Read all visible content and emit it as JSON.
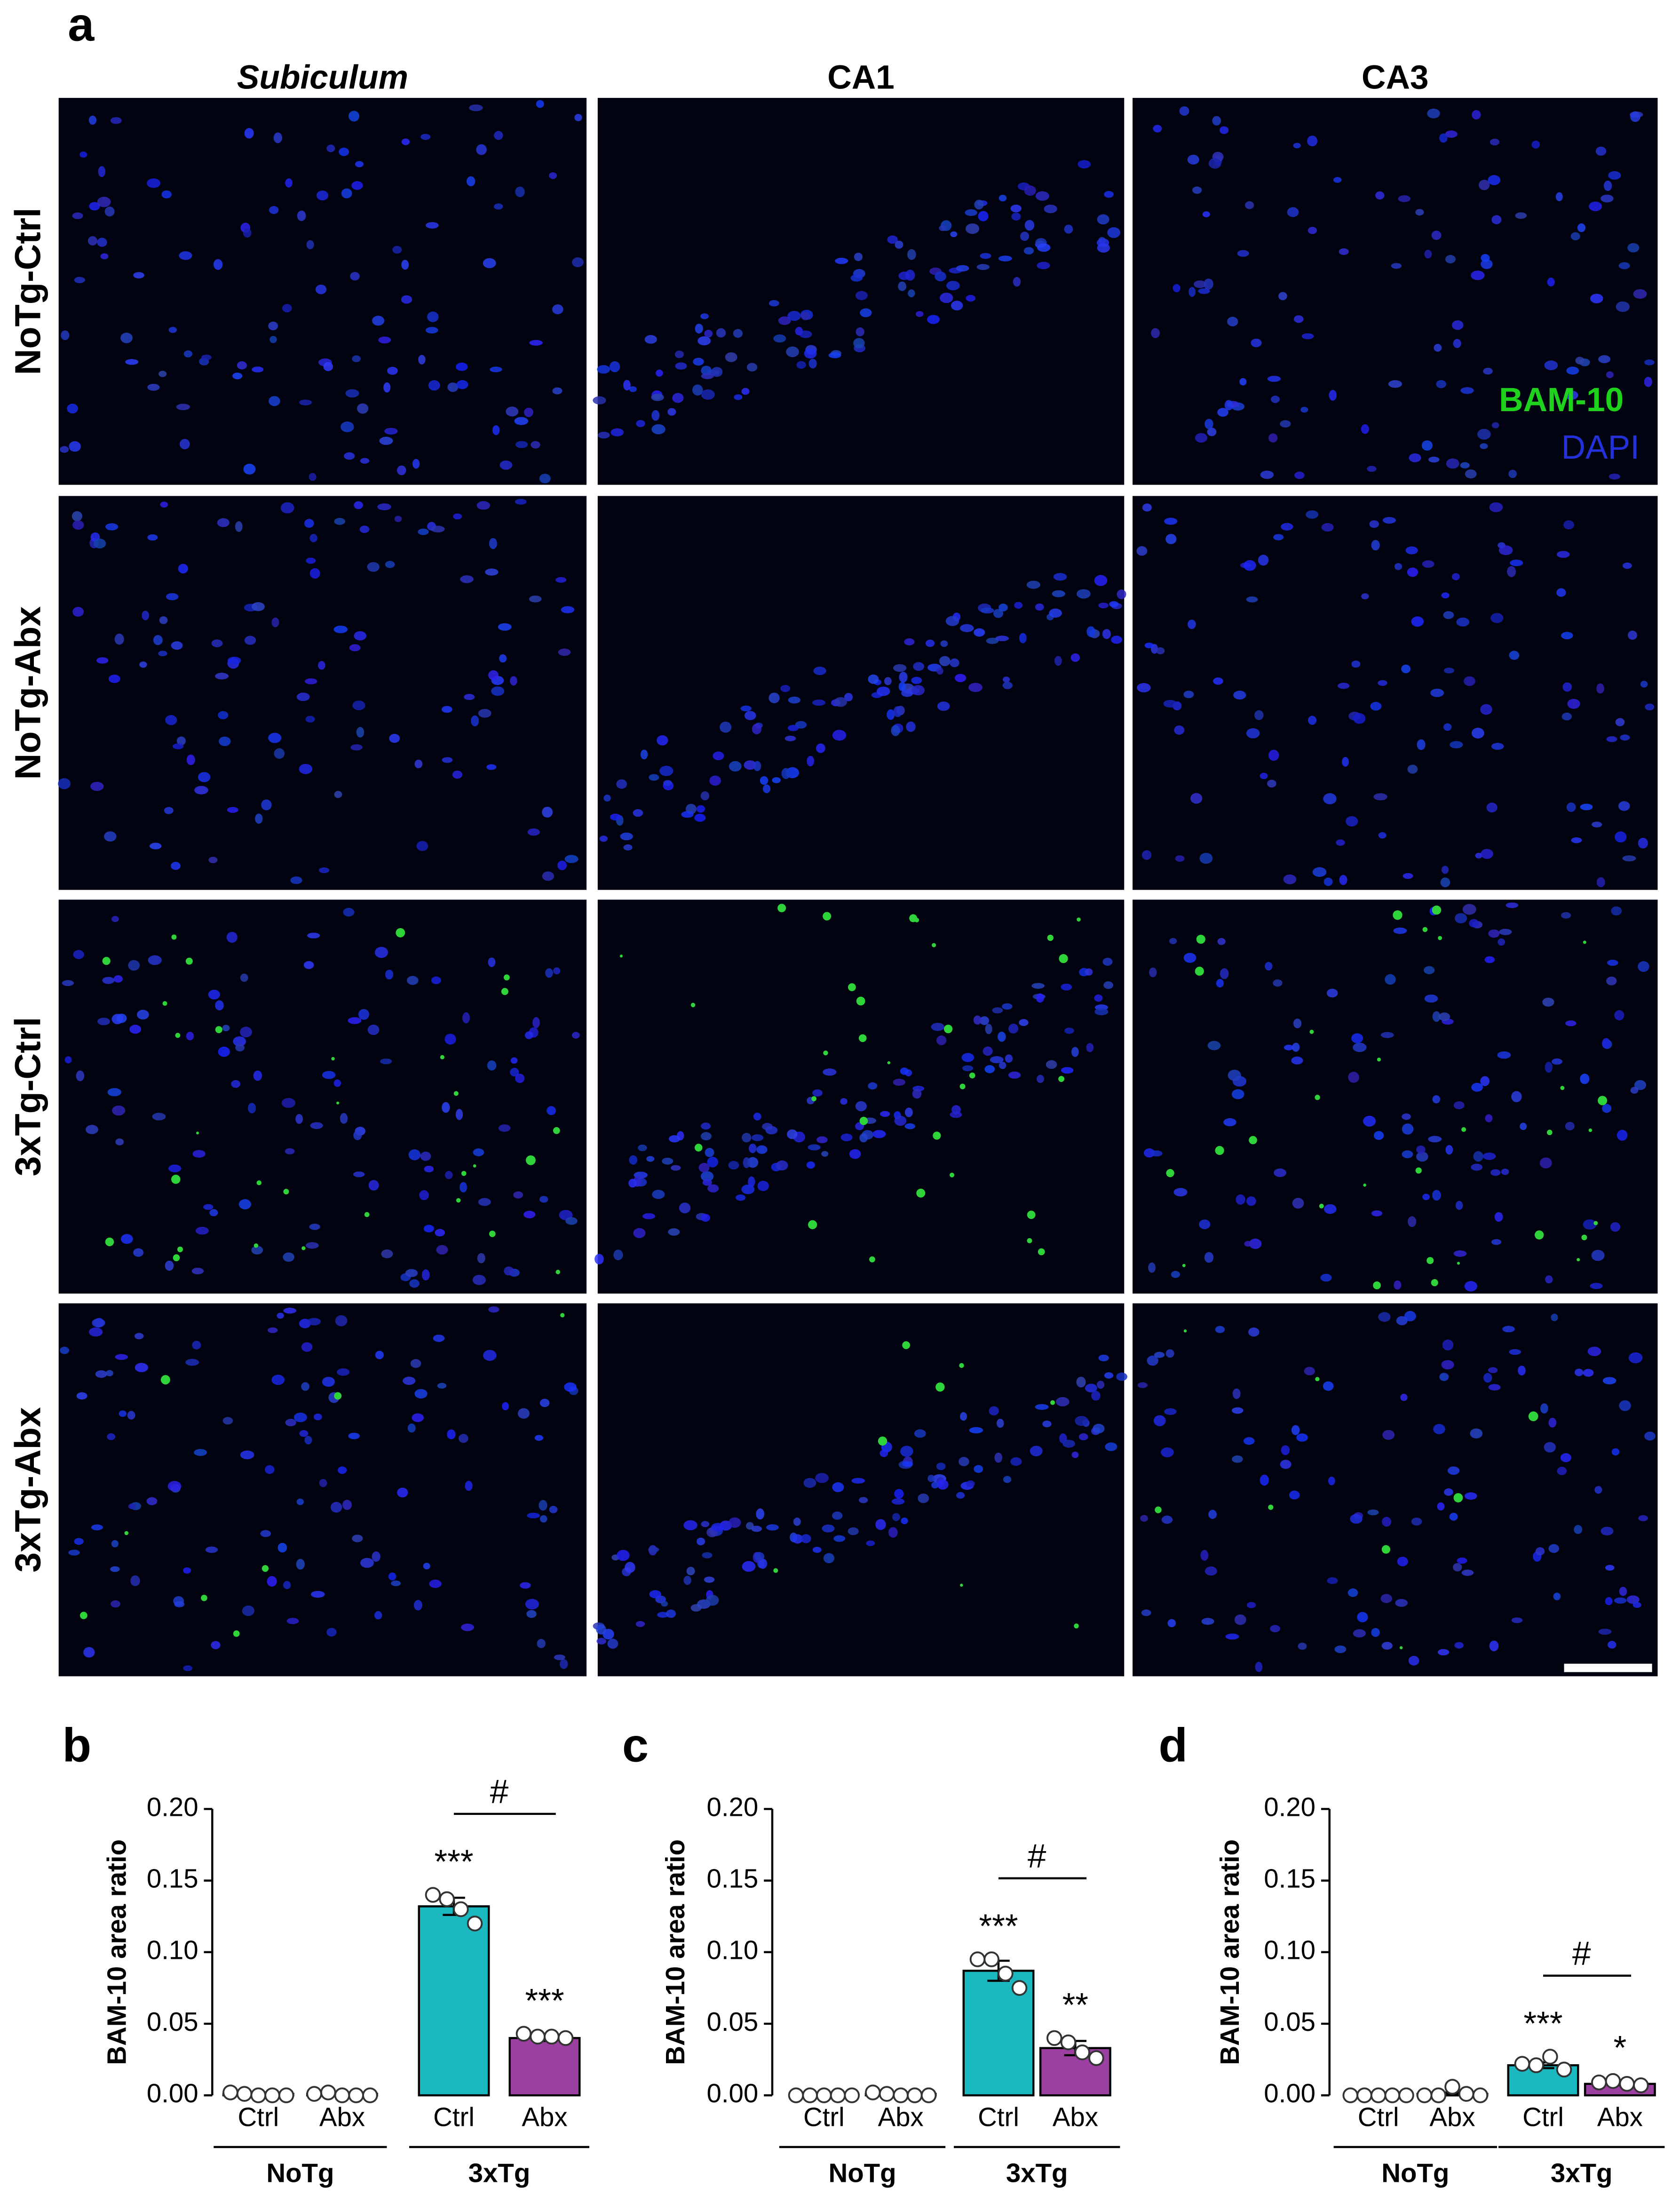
{
  "image_panel": {
    "panel_label": "a",
    "columns": [
      "Subiculum",
      "CA1",
      "CA3"
    ],
    "rows": [
      "NoTg-Ctrl",
      "NoTg-Abx",
      "3xTg-Ctrl",
      "3xTg-Abx"
    ],
    "legend": [
      "BAM-10",
      "DAPI"
    ]
  },
  "chart_data": [
    {
      "type": "bar",
      "panel_label": "b",
      "ylabel": "BAM-10 area ratio",
      "categories": [
        "Ctrl",
        "Abx",
        "Ctrl",
        "Abx"
      ],
      "groups": [
        "NoTg",
        "3xTg"
      ],
      "values": [
        0.001,
        0.001,
        0.132,
        0.04
      ],
      "errors": [
        0.001,
        0.001,
        0.006,
        0.002
      ],
      "points": [
        [
          0.002,
          0.001,
          0,
          0,
          0
        ],
        [
          0.001,
          0.002,
          0,
          0,
          0
        ],
        [
          0.14,
          0.137,
          0.13,
          0.12
        ],
        [
          0.043,
          0.041,
          0.041,
          0.04
        ]
      ],
      "colors": [
        "#1bb8c0",
        "#9b3fa0",
        "#1bb8c0",
        "#9b3fa0"
      ],
      "significance": [
        null,
        null,
        "***",
        "***"
      ],
      "comparison": "#",
      "ylim": [
        0,
        0.2
      ],
      "yticks": [
        {
          "value": 0,
          "label": "0.00"
        },
        {
          "value": 0.05,
          "label": "0.05"
        },
        {
          "value": 0.1,
          "label": "0.10"
        },
        {
          "value": 0.15,
          "label": "0.15"
        },
        {
          "value": 0.2,
          "label": "0.20"
        }
      ]
    },
    {
      "type": "bar",
      "panel_label": "c",
      "ylabel": "BAM-10 area ratio",
      "categories": [
        "Ctrl",
        "Abx",
        "Ctrl",
        "Abx"
      ],
      "groups": [
        "NoTg",
        "3xTg"
      ],
      "values": [
        0,
        0.001,
        0.087,
        0.033
      ],
      "errors": [
        0,
        0.001,
        0.007,
        0.005
      ],
      "points": [
        [
          0,
          0,
          0,
          0,
          0
        ],
        [
          0.002,
          0.001,
          0,
          0,
          0
        ],
        [
          0.095,
          0.095,
          0.085,
          0.075
        ],
        [
          0.04,
          0.037,
          0.03,
          0.026
        ]
      ],
      "colors": [
        "#1bb8c0",
        "#9b3fa0",
        "#1bb8c0",
        "#9b3fa0"
      ],
      "significance": [
        null,
        null,
        "***",
        "**"
      ],
      "comparison": "#",
      "ylim": [
        0,
        0.2
      ],
      "yticks": [
        {
          "value": 0,
          "label": "0.00"
        },
        {
          "value": 0.05,
          "label": "0.05"
        },
        {
          "value": 0.1,
          "label": "0.10"
        },
        {
          "value": 0.15,
          "label": "0.15"
        },
        {
          "value": 0.2,
          "label": "0.20"
        }
      ]
    },
    {
      "type": "bar",
      "panel_label": "d",
      "ylabel": "BAM-10 area ratio",
      "categories": [
        "Ctrl",
        "Abx",
        "Ctrl",
        "Abx"
      ],
      "groups": [
        "NoTg",
        "3xTg"
      ],
      "values": [
        0,
        0.001,
        0.021,
        0.008
      ],
      "errors": [
        0,
        0.001,
        0.002,
        0.001
      ],
      "points": [
        [
          0,
          0,
          0,
          0,
          0
        ],
        [
          0,
          0,
          0.006,
          0.001,
          0
        ],
        [
          0.022,
          0.021,
          0.027,
          0.018
        ],
        [
          0.009,
          0.01,
          0.008,
          0.007
        ]
      ],
      "colors": [
        "#1bb8c0",
        "#9b3fa0",
        "#1bb8c0",
        "#9b3fa0"
      ],
      "significance": [
        null,
        null,
        "***",
        "*"
      ],
      "comparison": "#",
      "ylim": [
        0,
        0.2
      ],
      "yticks": [
        {
          "value": 0,
          "label": "0.00"
        },
        {
          "value": 0.05,
          "label": "0.05"
        },
        {
          "value": 0.1,
          "label": "0.10"
        },
        {
          "value": 0.15,
          "label": "0.15"
        },
        {
          "value": 0.2,
          "label": "0.20"
        }
      ]
    }
  ]
}
